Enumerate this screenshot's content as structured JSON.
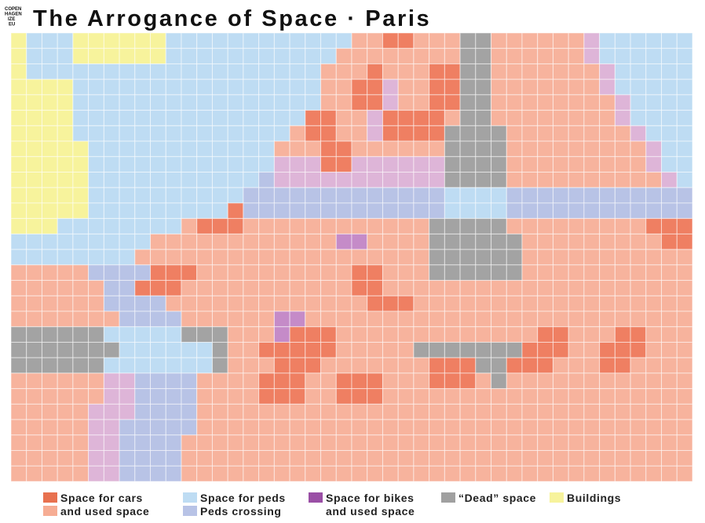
{
  "header": {
    "title": "The Arrogance of Space · Paris",
    "logo": [
      "COPEN",
      "HAGEN",
      "IZE",
      "EU"
    ]
  },
  "map": {
    "palette": [
      "#ef7f62",
      "#f7b39d",
      "#bedcf3",
      "#b8c3e6",
      "#c58bc8",
      "#deb5d8",
      "#a3a3a3",
      "#f7f39c"
    ],
    "rows": [
      "7 222 777777 22222 22222 22 11 00 111 66 11111 1 5 22222 2",
      "7 222 777777 22222 22222 2 11111 111 66 11111 1 5 22222 2",
      "7 22222 22222 22222 2222 111 0 111 00 66 11111 11 5 22222",
      "7777 22222 22222 22222 2 11 00 5 11 00 66 11111 11 5 22222",
      "7777 22222 22222 22222 2 11 00 5 11 00 66 11111 111 5 2222",
      "7777 22222 22222 22222 00 11 5 0000 1 66 11111 111 5 2222",
      "7777 22222 22222 2222 1 00 11 5 0000 6666 11111 111 5 222",
      "77777 22222 22222 22 111 00 11111 1 6666 11111 1111 5 22",
      "77777 22222 22222 22 555 00 55555 5 6666 11111 1111 5 22",
      "77777 22222 22222 2 3 55555 55555 5 6666 11111 11111 5 2",
      "77777 22222 22222 33333 33333 333 2222 33333 33333 33",
      "77777 22222 2222 0 33333 33333 333 2222 33333 33333 33",
      "777 22222 222 1 000 11111 11111 11 66666 11111 1111 000",
      "22222 2222 11111 11111 11 44 1111 666666 11111 1111 00",
      "22222 222 11111 11111 11111 1111 666666 11111 11111 1",
      "11111 3333 000 11111 11111 00 111 666666 11111 11111 1",
      "11111 1 33 000 11111 11111 1 00 11111 11111 11111 11111",
      "11111 1 3333 11111 11111 111 000 11111 11111 11111 111",
      "11111 11 3333 11111 1 44 11111 11111 11111 11111 11111",
      "66666 6 22222 666 111 4 000 11111 11111 111 00 111 00 111",
      "66666 66 22222 2 6 11 00000 11111 66666 66 000 11 000 111",
      "66666 6 22222 22 6 111 000 11111 11 000 66 000 111 00 1111",
      "11111 1 55 3333 1111 000 11 000 111 000 1 6 11111 11111 11",
      "11111 1 55 3333 1111 000 11 000 11111 11111 11111 11111",
      "11111 555 3333 11111 11111 11111 11111 11111 11111 11",
      "11111 55 33333 11111 11111 11111 11111 11111 11111 11",
      "11111 55 3333 11111 11111 11111 11111 11111 11111 111",
      "11111 55 3333 11111 11111 11111 11111 11111 11111 111",
      "11111 55 3333 11111 11111 11111 11111 11111 11111 111"
    ]
  },
  "legend": [
    {
      "label": "Space for cars",
      "color": "#e8714f"
    },
    {
      "label": "and used space",
      "color": "#f6ad94"
    },
    {
      "label": "Space for peds",
      "color": "#bedcf3"
    },
    {
      "label": "Peds crossing",
      "color": "#b8c3e6"
    },
    {
      "label": "Space for bikes",
      "color": "#9a4fa5",
      "sublabel": "and used space"
    },
    {
      "label": "“Dead” space",
      "color": "#a0a0a0"
    },
    {
      "label": "Buildings",
      "color": "#f7f39c"
    }
  ]
}
